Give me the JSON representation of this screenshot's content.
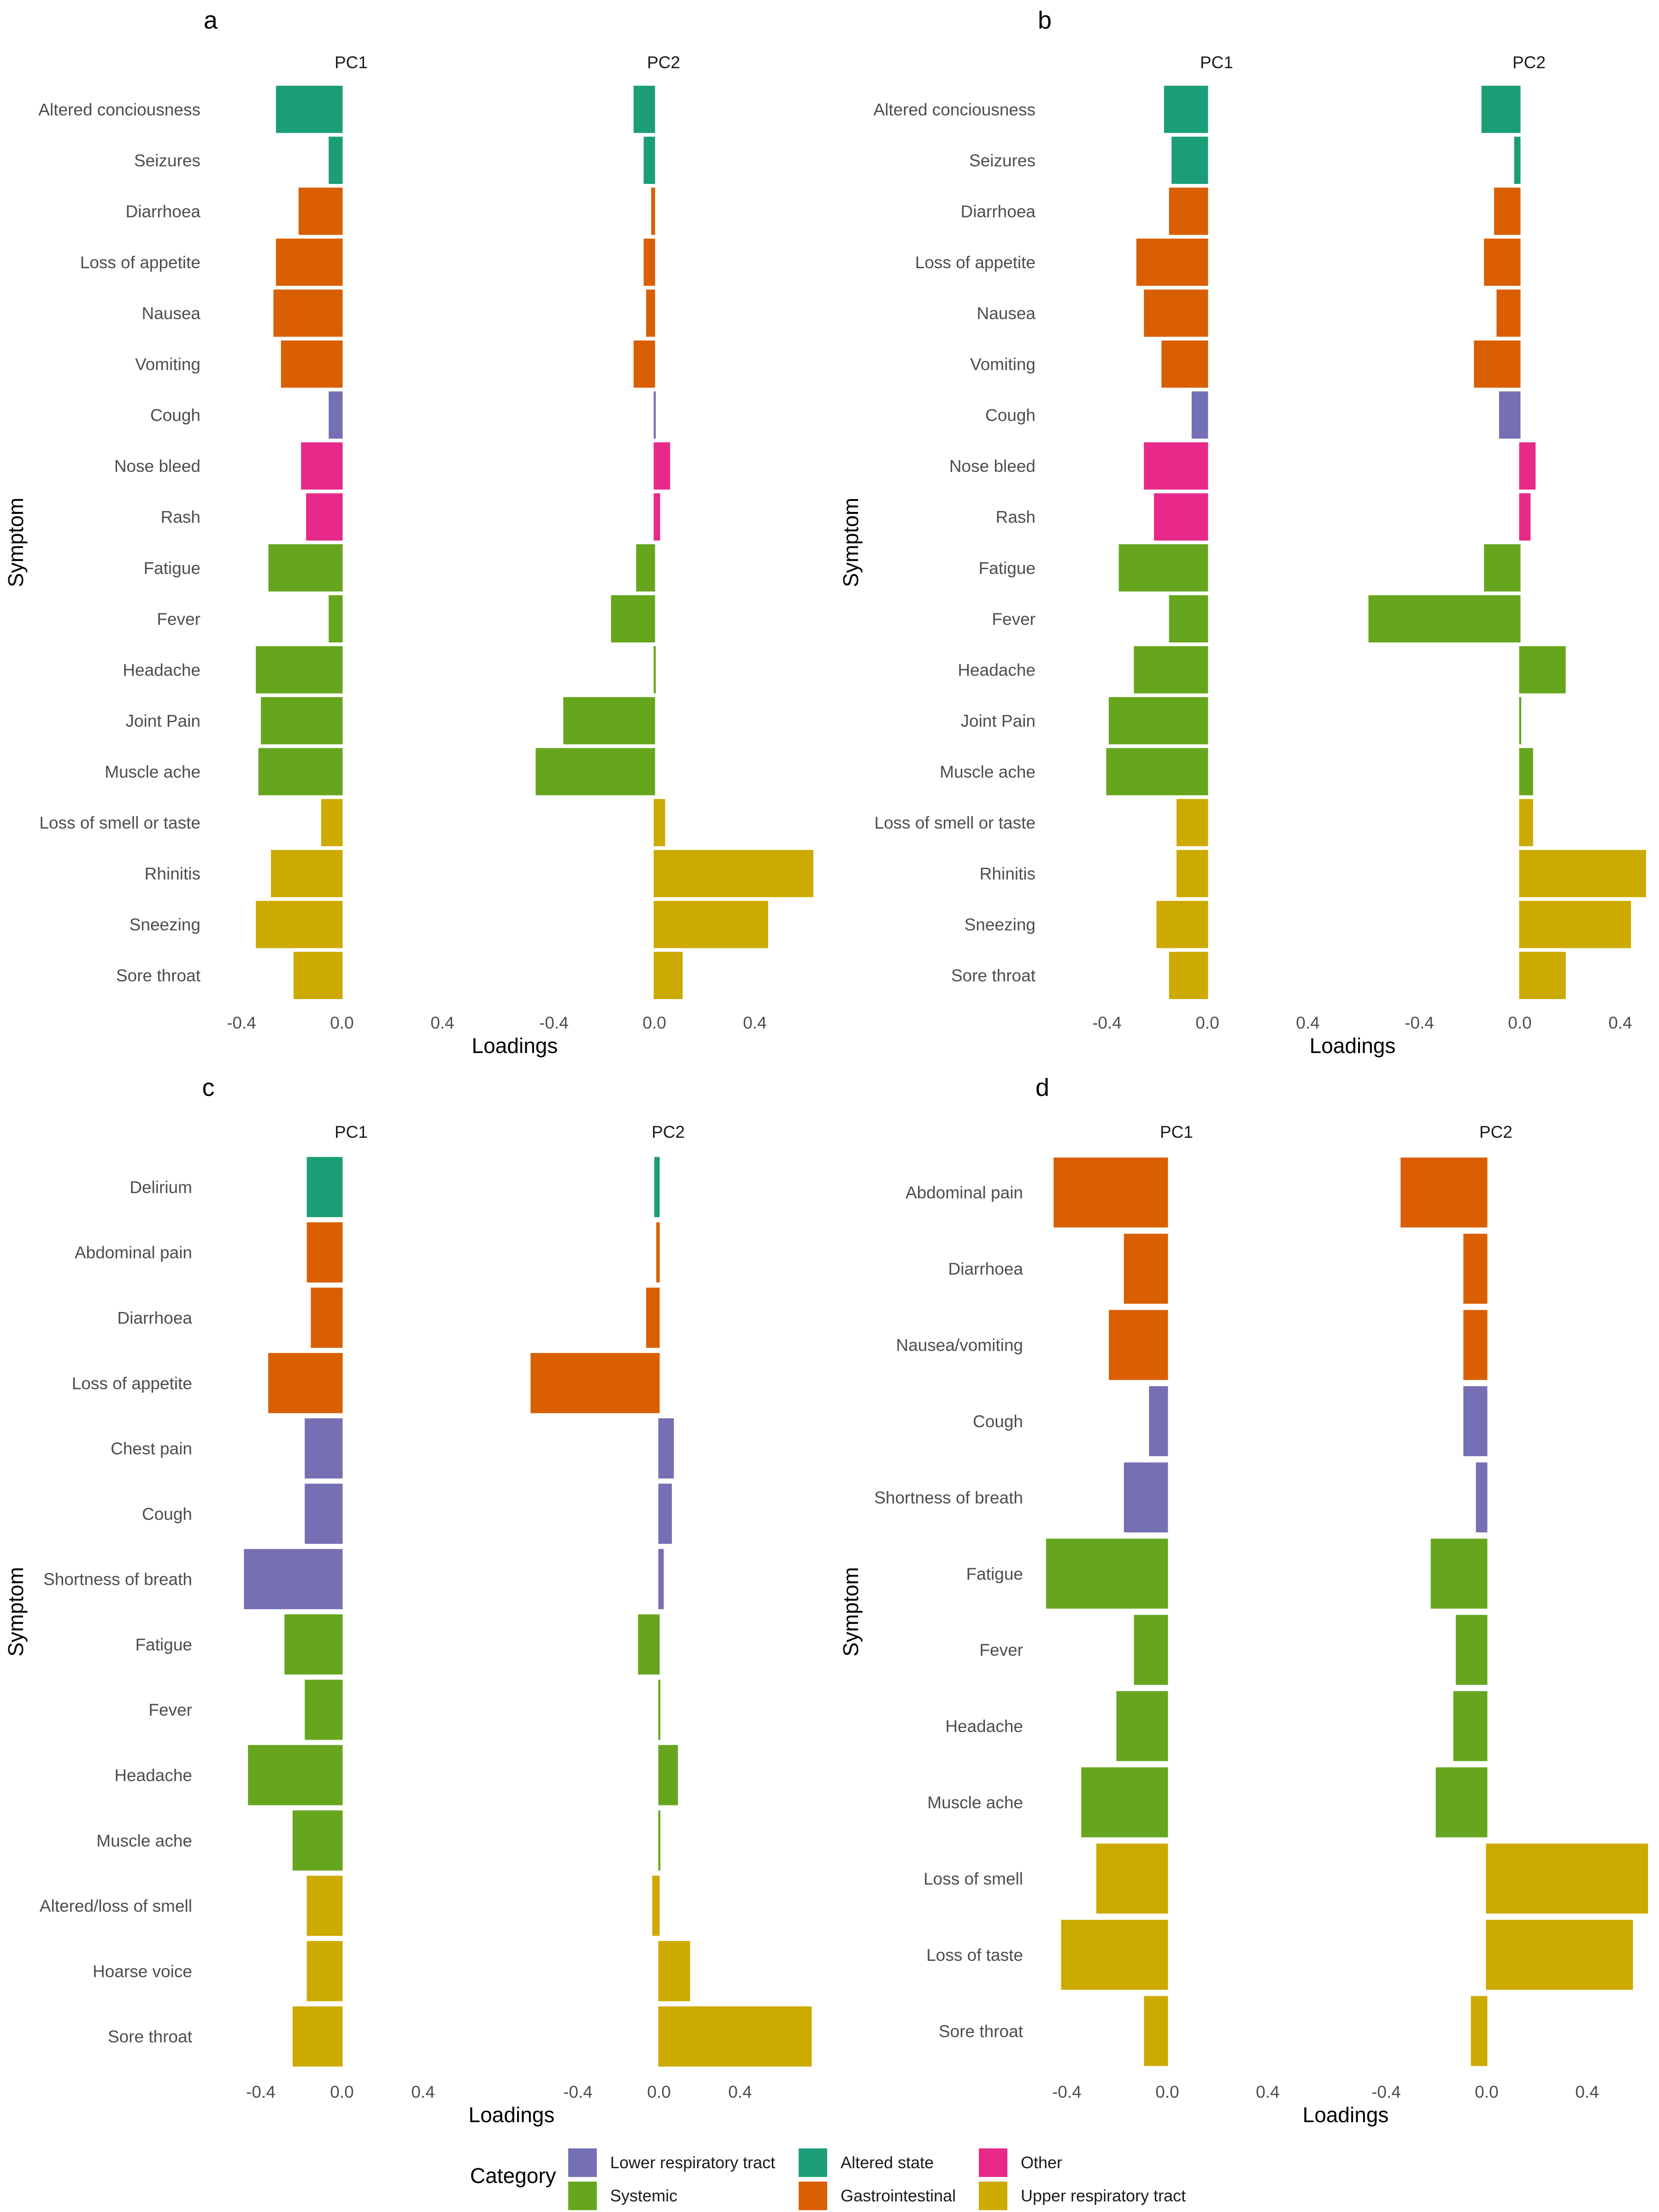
{
  "legend": {
    "title": "Category",
    "items": [
      {
        "name": "Lower respiratory tract",
        "color": "#7570B3"
      },
      {
        "name": "Systemic",
        "color": "#66A61E"
      },
      {
        "name": "Altered state",
        "color": "#1B9E77"
      },
      {
        "name": "Gastrointestinal",
        "color": "#D95F02"
      },
      {
        "name": "Other",
        "color": "#E7298A"
      },
      {
        "name": "Upper respiratory tract",
        "color": "#CCAA00"
      }
    ]
  },
  "chart_data": [
    {
      "panel": "a",
      "type": "bar",
      "orientation": "horizontal",
      "ylabel": "Symptom",
      "xlabel": "Loadings",
      "facets": [
        "PC1",
        "PC2"
      ],
      "xlim": [
        -0.55,
        0.65
      ],
      "xticks": [
        -0.4,
        0.0,
        0.4
      ],
      "tick_labels": [
        "-0.4",
        "0.0",
        "0.4"
      ],
      "categories": [
        "Altered conciousness",
        "Seizures",
        "Diarrhoea",
        "Loss of appetite",
        "Nausea",
        "Vomiting",
        "Cough",
        "Nose bleed",
        "Rash",
        "Fatigue",
        "Fever",
        "Headache",
        "Joint Pain",
        "Muscle ache",
        "Loss of smell or taste",
        "Rhinitis",
        "Sneezing",
        "Sore throat"
      ],
      "groups": [
        "Altered state",
        "Altered state",
        "Gastrointestinal",
        "Gastrointestinal",
        "Gastrointestinal",
        "Gastrointestinal",
        "Lower respiratory tract",
        "Other",
        "Other",
        "Systemic",
        "Systemic",
        "Systemic",
        "Systemic",
        "Systemic",
        "Upper respiratory tract",
        "Upper respiratory tract",
        "Upper respiratory tract",
        "Upper respiratory tract"
      ],
      "series": [
        {
          "name": "PC1",
          "values": [
            -0.26,
            -0.05,
            -0.17,
            -0.26,
            -0.27,
            -0.24,
            -0.05,
            -0.16,
            -0.14,
            -0.29,
            -0.05,
            -0.34,
            -0.32,
            -0.33,
            -0.08,
            -0.28,
            -0.34,
            -0.19
          ]
        },
        {
          "name": "PC2",
          "values": [
            -0.08,
            -0.04,
            -0.01,
            -0.04,
            -0.03,
            -0.08,
            0.0,
            0.06,
            0.02,
            -0.07,
            -0.17,
            0.0,
            -0.36,
            -0.47,
            0.04,
            0.63,
            0.45,
            0.11
          ]
        }
      ]
    },
    {
      "panel": "b",
      "type": "bar",
      "orientation": "horizontal",
      "ylabel": "Symptom",
      "xlabel": "Loadings",
      "facets": [
        "PC1",
        "PC2"
      ],
      "xlim": [
        -0.55,
        0.5
      ],
      "xticks": [
        -0.4,
        0.0,
        0.4
      ],
      "tick_labels": [
        "-0.4",
        "0.0",
        "0.4"
      ],
      "categories": [
        "Altered conciousness",
        "Seizures",
        "Diarrhoea",
        "Loss of appetite",
        "Nausea",
        "Vomiting",
        "Cough",
        "Nose bleed",
        "Rash",
        "Fatigue",
        "Fever",
        "Headache",
        "Joint Pain",
        "Muscle ache",
        "Loss of smell or taste",
        "Rhinitis",
        "Sneezing",
        "Sore throat"
      ],
      "groups": [
        "Altered state",
        "Altered state",
        "Gastrointestinal",
        "Gastrointestinal",
        "Gastrointestinal",
        "Gastrointestinal",
        "Lower respiratory tract",
        "Other",
        "Other",
        "Systemic",
        "Systemic",
        "Systemic",
        "Systemic",
        "Systemic",
        "Upper respiratory tract",
        "Upper respiratory tract",
        "Upper respiratory tract",
        "Upper respiratory tract"
      ],
      "series": [
        {
          "name": "PC1",
          "values": [
            -0.17,
            -0.14,
            -0.15,
            -0.28,
            -0.25,
            -0.18,
            -0.06,
            -0.25,
            -0.21,
            -0.35,
            -0.15,
            -0.29,
            -0.39,
            -0.4,
            -0.12,
            -0.12,
            -0.2,
            -0.15
          ]
        },
        {
          "name": "PC2",
          "values": [
            -0.15,
            -0.02,
            -0.1,
            -0.14,
            -0.09,
            -0.18,
            -0.08,
            0.06,
            0.04,
            -0.14,
            -0.6,
            0.18,
            0.0,
            0.05,
            0.05,
            0.5,
            0.44,
            0.18
          ]
        }
      ]
    },
    {
      "panel": "c",
      "type": "bar",
      "orientation": "horizontal",
      "ylabel": "Symptom",
      "xlabel": "Loadings",
      "facets": [
        "PC1",
        "PC2"
      ],
      "xlim": [
        -0.55,
        0.75
      ],
      "xticks": [
        -0.4,
        0.0,
        0.4
      ],
      "tick_labels": [
        "-0.4",
        "0.0",
        "0.4"
      ],
      "categories": [
        "Delirium",
        "Abdominal pain",
        "Diarrhoea",
        "Loss of appetite",
        "Chest pain",
        "Cough",
        "Shortness of breath",
        "Fatigue",
        "Fever",
        "Headache",
        "Muscle ache",
        "Altered/loss of smell",
        "Hoarse voice",
        "Sore throat"
      ],
      "groups": [
        "Altered state",
        "Gastrointestinal",
        "Gastrointestinal",
        "Gastrointestinal",
        "Lower respiratory tract",
        "Lower respiratory tract",
        "Lower respiratory tract",
        "Systemic",
        "Systemic",
        "Systemic",
        "Systemic",
        "Upper respiratory tract",
        "Upper respiratory tract",
        "Upper respiratory tract"
      ],
      "series": [
        {
          "name": "PC1",
          "values": [
            -0.17,
            -0.17,
            -0.15,
            -0.36,
            -0.18,
            -0.18,
            -0.48,
            -0.28,
            -0.18,
            -0.46,
            -0.24,
            -0.17,
            -0.17,
            -0.24
          ]
        },
        {
          "name": "PC2",
          "values": [
            -0.02,
            -0.01,
            -0.06,
            -0.63,
            0.07,
            0.06,
            0.02,
            -0.1,
            0.0,
            0.09,
            0.0,
            -0.03,
            0.15,
            0.75
          ]
        }
      ]
    },
    {
      "panel": "d",
      "type": "bar",
      "orientation": "horizontal",
      "ylabel": "Symptom",
      "xlabel": "Loadings",
      "facets": [
        "PC1",
        "PC2"
      ],
      "xlim": [
        -0.55,
        0.65
      ],
      "xticks": [
        -0.4,
        0.0,
        0.4
      ],
      "tick_labels": [
        "-0.4",
        "0.0",
        "0.4"
      ],
      "categories": [
        "Abdominal pain",
        "Diarrhoea",
        "Nausea/vomiting",
        "Cough",
        "Shortness of breath",
        "Fatigue",
        "Fever",
        "Headache",
        "Muscle ache",
        "Loss of smell",
        "Loss of taste",
        "Sore throat"
      ],
      "groups": [
        "Gastrointestinal",
        "Gastrointestinal",
        "Gastrointestinal",
        "Lower respiratory tract",
        "Lower respiratory tract",
        "Systemic",
        "Systemic",
        "Systemic",
        "Systemic",
        "Upper respiratory tract",
        "Upper respiratory tract",
        "Upper respiratory tract"
      ],
      "series": [
        {
          "name": "PC1",
          "values": [
            -0.45,
            -0.17,
            -0.23,
            -0.07,
            -0.17,
            -0.48,
            -0.13,
            -0.2,
            -0.34,
            -0.28,
            -0.42,
            -0.09
          ]
        },
        {
          "name": "PC2",
          "values": [
            -0.34,
            -0.09,
            -0.09,
            -0.09,
            -0.04,
            -0.22,
            -0.12,
            -0.13,
            -0.2,
            0.64,
            0.58,
            -0.06
          ]
        }
      ]
    }
  ]
}
